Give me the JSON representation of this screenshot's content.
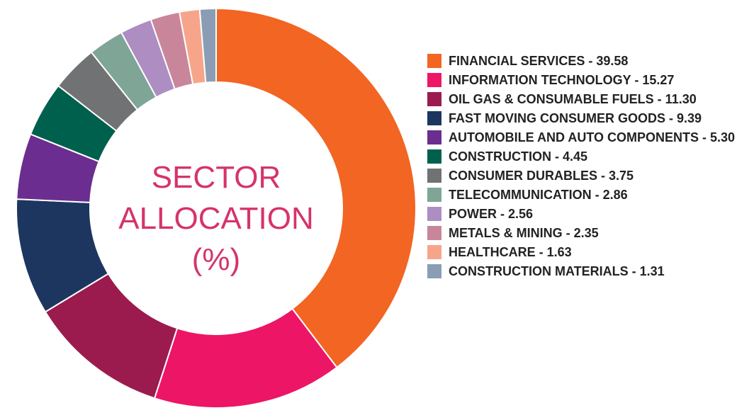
{
  "chart_data": {
    "type": "pie",
    "donut": true,
    "title": "SECTOR ALLOCATION (%)",
    "categories": [
      "FINANCIAL SERVICES - 39.58",
      "INFORMATION TECHNOLOGY - 15.27",
      "OIL GAS & CONSUMABLE FUELS - 11.30",
      "FAST MOVING CONSUMER GOODS - 9.39",
      "AUTOMOBILE AND AUTO COMPONENTS - 5.30",
      "CONSTRUCTION - 4.45",
      "CONSUMER DURABLES - 3.75",
      "TELECOMMUNICATION - 2.86",
      "POWER - 2.56",
      "METALS & MINING - 2.35",
      "HEALTHCARE - 1.63",
      "CONSTRUCTION MATERIALS - 1.31"
    ],
    "values": [
      39.58,
      15.27,
      11.3,
      9.39,
      5.3,
      4.45,
      3.75,
      2.86,
      2.56,
      2.35,
      1.63,
      1.31
    ],
    "colors": [
      "#f26522",
      "#ed1566",
      "#9b1b4e",
      "#1c3660",
      "#6b2d8f",
      "#00604e",
      "#717273",
      "#7fa597",
      "#ad8dc2",
      "#c9869b",
      "#f7a58a",
      "#8a9db5"
    ],
    "legend": "right"
  }
}
